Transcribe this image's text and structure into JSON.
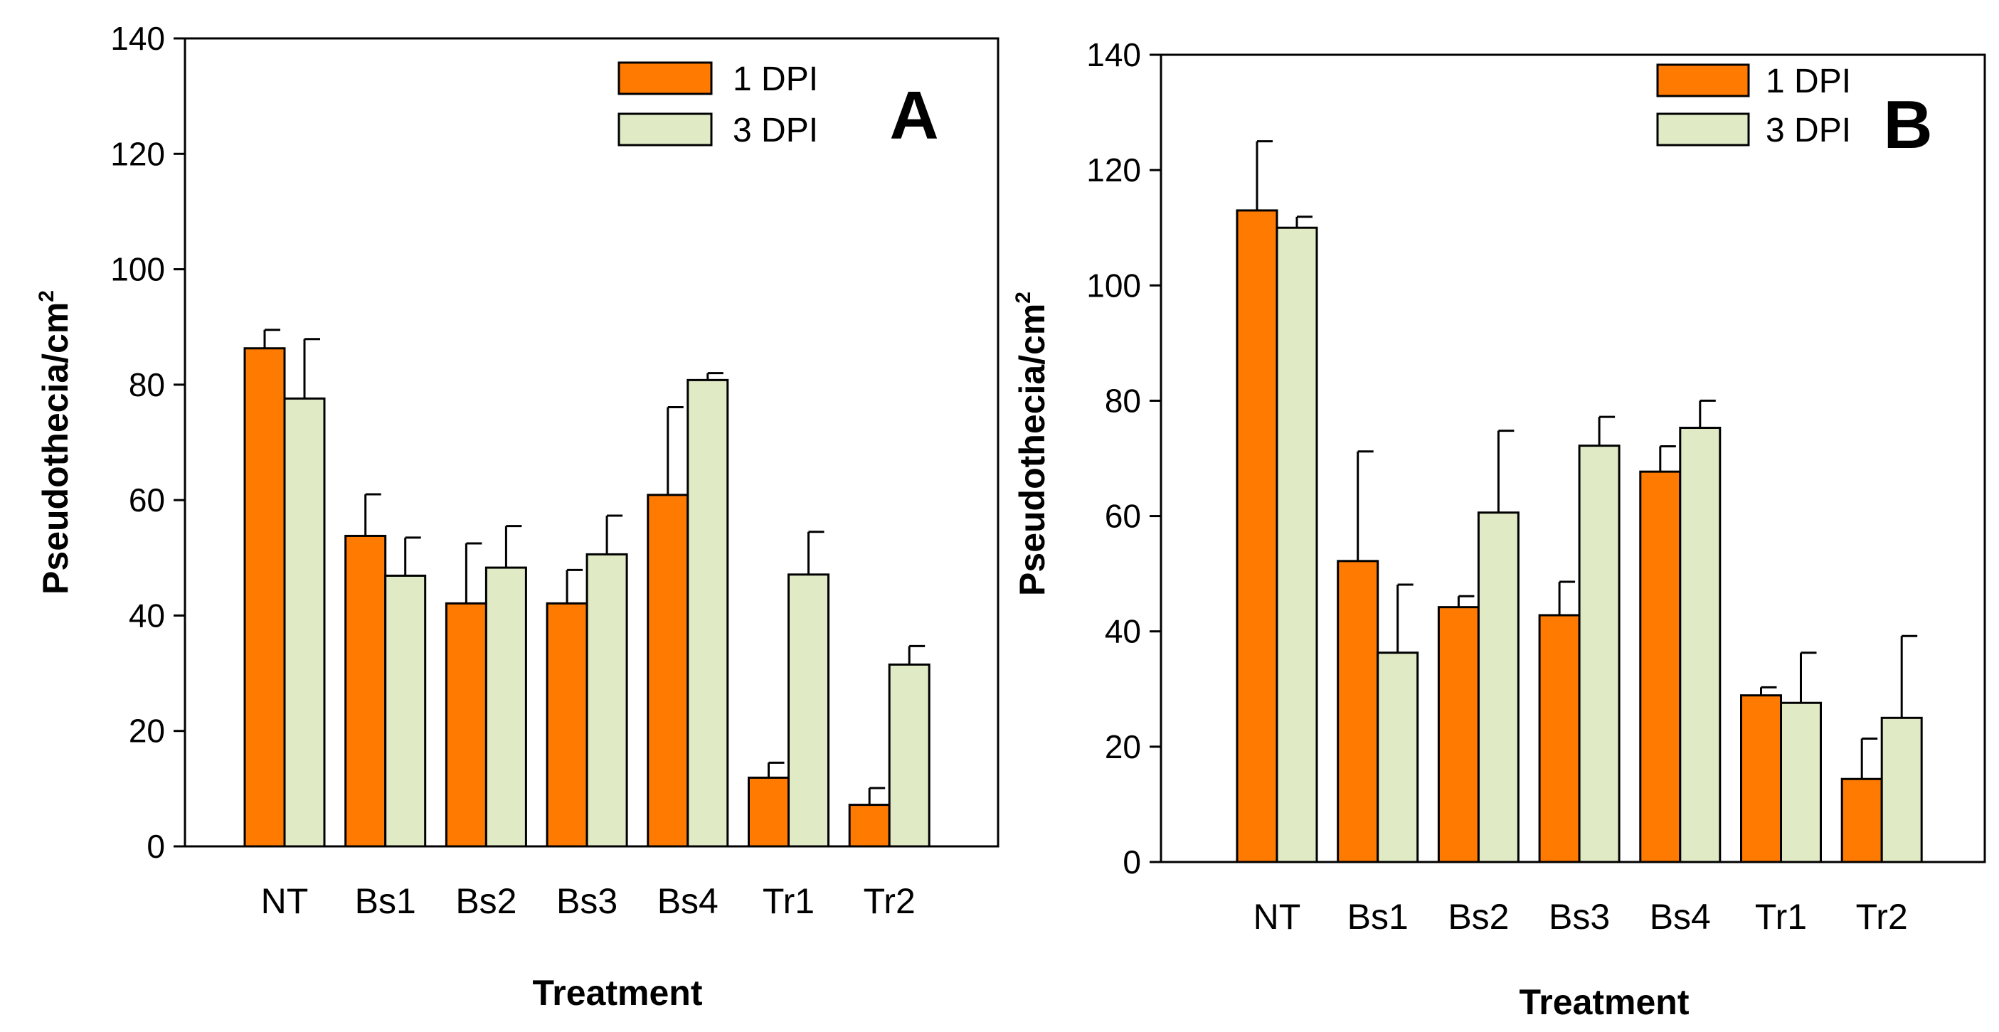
{
  "chart_data": [
    {
      "type": "bar",
      "panel_label": "A",
      "title": "",
      "xlabel": "Treatment",
      "ylabel": "Pseudothecia/cm",
      "ylabel_superscript": "2",
      "ylim": [
        0,
        140
      ],
      "yticks": [
        0,
        20,
        40,
        60,
        80,
        100,
        120,
        140
      ],
      "grid": false,
      "legend_position": "top-right",
      "categories": [
        "NT",
        "Bs1",
        "Bs2",
        "Bs3",
        "Bs4",
        "Tr1",
        "Tr2"
      ],
      "series": [
        {
          "name": "1 DPI",
          "color": "#FF7A00",
          "values": [
            86.3,
            53.8,
            42.1,
            42.1,
            60.9,
            11.9,
            7.2
          ],
          "errors": [
            3.2,
            7.2,
            10.4,
            5.8,
            15.2,
            2.6,
            2.9
          ]
        },
        {
          "name": "3 DPI",
          "color": "#E0EBC6",
          "values": [
            77.6,
            46.9,
            48.3,
            50.6,
            80.8,
            47.1,
            31.5
          ],
          "errors": [
            10.3,
            6.6,
            7.2,
            6.7,
            1.2,
            7.4,
            3.2
          ]
        }
      ]
    },
    {
      "type": "bar",
      "panel_label": "B",
      "title": "",
      "xlabel": "Treatment",
      "ylabel": "Pseudothecia/cm",
      "ylabel_superscript": "2",
      "ylim": [
        0,
        140
      ],
      "yticks": [
        0,
        20,
        40,
        60,
        80,
        100,
        120,
        140
      ],
      "grid": false,
      "legend_position": "top-right",
      "categories": [
        "NT",
        "Bs1",
        "Bs2",
        "Bs3",
        "Bs4",
        "Tr1",
        "Tr2"
      ],
      "series": [
        {
          "name": "1 DPI",
          "color": "#FF7A00",
          "values": [
            113.0,
            52.2,
            44.2,
            42.8,
            67.7,
            28.9,
            14.4
          ],
          "errors": [
            12.0,
            19.0,
            1.9,
            5.8,
            4.4,
            1.4,
            7.0
          ]
        },
        {
          "name": "3 DPI",
          "color": "#E0EBC6",
          "values": [
            110.0,
            36.3,
            60.6,
            72.2,
            75.3,
            27.6,
            25.0
          ],
          "errors": [
            1.9,
            11.8,
            14.2,
            5.0,
            4.7,
            8.7,
            14.2
          ]
        }
      ]
    }
  ]
}
